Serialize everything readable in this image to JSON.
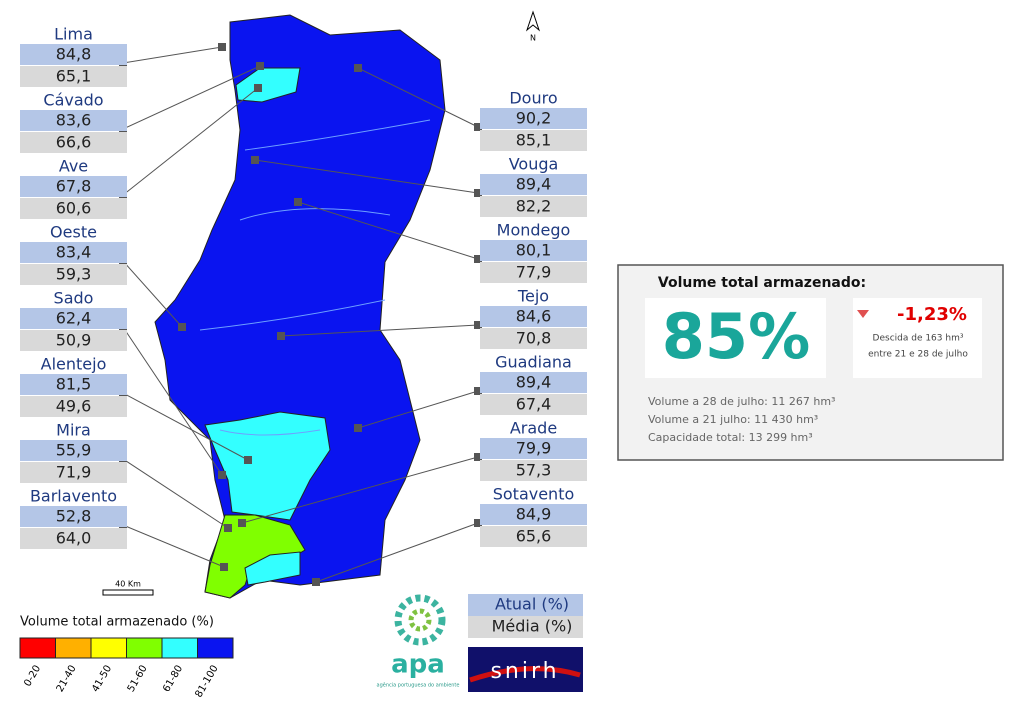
{
  "north": "N",
  "scale": "40 Km",
  "basins_left": [
    {
      "name": "Lima",
      "atual": "84,8",
      "media": "65,1"
    },
    {
      "name": "Cávado",
      "atual": "83,6",
      "media": "66,6"
    },
    {
      "name": "Ave",
      "atual": "67,8",
      "media": "60,6"
    },
    {
      "name": "Oeste",
      "atual": "83,4",
      "media": "59,3"
    },
    {
      "name": "Sado",
      "atual": "62,4",
      "media": "50,9"
    },
    {
      "name": "Alentejo",
      "atual": "81,5",
      "media": "49,6"
    },
    {
      "name": "Mira",
      "atual": "55,9",
      "media": "71,9"
    },
    {
      "name": "Barlavento",
      "atual": "52,8",
      "media": "64,0"
    }
  ],
  "basins_right": [
    {
      "name": "Douro",
      "atual": "90,2",
      "media": "85,1"
    },
    {
      "name": "Vouga",
      "atual": "89,4",
      "media": "82,2"
    },
    {
      "name": "Mondego",
      "atual": "80,1",
      "media": "77,9"
    },
    {
      "name": "Tejo",
      "atual": "84,6",
      "media": "70,8"
    },
    {
      "name": "Guadiana",
      "atual": "89,4",
      "media": "67,4"
    },
    {
      "name": "Arade",
      "atual": "79,9",
      "media": "57,3"
    },
    {
      "name": "Sotavento",
      "atual": "84,9",
      "media": "65,6"
    }
  ],
  "legend": {
    "title": "Volume total armazenado (%)",
    "classes": [
      {
        "label": "0-20",
        "color": "#ff0000"
      },
      {
        "label": "21-40",
        "color": "#ffb000"
      },
      {
        "label": "41-50",
        "color": "#ffff00"
      },
      {
        "label": "51-60",
        "color": "#80ff00"
      },
      {
        "label": "61-80",
        "color": "#33ffff"
      },
      {
        "label": "81-100",
        "color": "#0a14f0"
      }
    ]
  },
  "key": {
    "atual": "Atual (%)",
    "media": "Média (%)"
  },
  "logos": {
    "apa": "apa",
    "apa_sub": "agência portuguesa do ambiente",
    "snirh": "snirh"
  },
  "summary": {
    "title": "Volume total armazenado:",
    "total": "85%",
    "change": "-1,23%",
    "change_note_1": "Descida de 163 hm³",
    "change_note_2": "entre 21 e 28 de julho",
    "lines": [
      "Volume a 28 de julho: 11 267 hm³",
      "Volume a 21 julho: 11 430 hm³",
      "Capacidade total: 13 299 hm³"
    ]
  }
}
